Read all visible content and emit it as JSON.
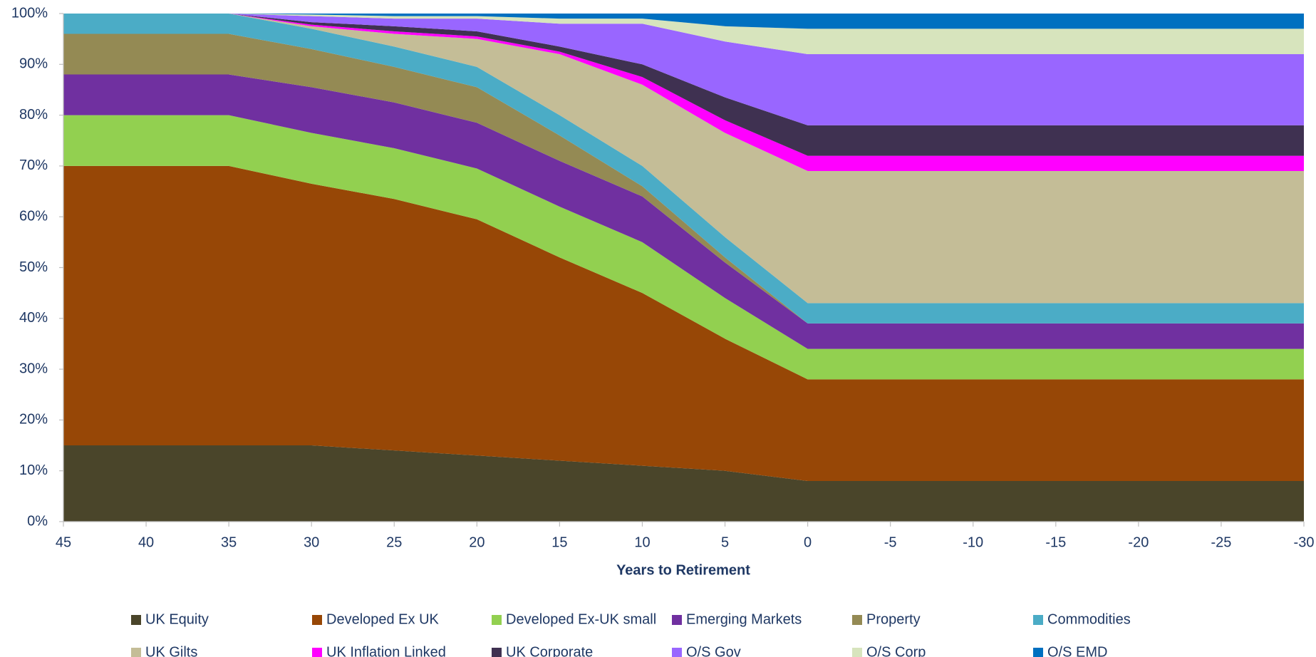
{
  "chart_data": {
    "type": "stacked_area",
    "x_label": "Years to Retirement",
    "x": [
      45,
      40,
      35,
      30,
      25,
      20,
      15,
      10,
      5,
      0,
      -5,
      -10,
      -15,
      -20,
      -25,
      -30
    ],
    "xlim": [
      45,
      -30
    ],
    "xticks": [
      45,
      40,
      35,
      30,
      25,
      20,
      15,
      10,
      5,
      0,
      -5,
      -10,
      -15,
      -20,
      -25,
      -30
    ],
    "ylim": [
      0,
      100
    ],
    "yticks": [
      {
        "value": 0,
        "label": "0%"
      },
      {
        "value": 10,
        "label": "10%"
      },
      {
        "value": 20,
        "label": "20%"
      },
      {
        "value": 30,
        "label": "30%"
      },
      {
        "value": 40,
        "label": "40%"
      },
      {
        "value": 50,
        "label": "50%"
      },
      {
        "value": 60,
        "label": "60%"
      },
      {
        "value": 70,
        "label": "70%"
      },
      {
        "value": 80,
        "label": "80%"
      },
      {
        "value": 90,
        "label": "90%"
      },
      {
        "value": 100,
        "label": "100%"
      }
    ],
    "legend": "bottom",
    "series": [
      {
        "name": "UK Equity",
        "color": "#4a452a",
        "values": [
          15,
          15,
          15,
          15,
          14,
          13,
          12,
          11,
          10,
          8,
          8,
          8,
          8,
          8,
          8,
          8
        ]
      },
      {
        "name": "Developed Ex UK",
        "color": "#974706",
        "values": [
          55,
          55,
          55,
          51.5,
          49.5,
          46.5,
          40,
          34,
          26,
          20,
          20,
          20,
          20,
          20,
          20,
          20
        ]
      },
      {
        "name": "Developed Ex-UK small",
        "color": "#92d050",
        "values": [
          10,
          10,
          10,
          10,
          10,
          10,
          10,
          10,
          8,
          6,
          6,
          6,
          6,
          6,
          6,
          6
        ]
      },
      {
        "name": "Emerging Markets",
        "color": "#7030a0",
        "values": [
          8,
          8,
          8,
          9,
          9,
          9,
          9,
          9,
          7,
          5,
          5,
          5,
          5,
          5,
          5,
          5
        ]
      },
      {
        "name": "Property",
        "color": "#948a54",
        "values": [
          8,
          8,
          8,
          7.5,
          7,
          7,
          5,
          2,
          1,
          0,
          0,
          0,
          0,
          0,
          0,
          0
        ]
      },
      {
        "name": "Commodities",
        "color": "#4bacc6",
        "values": [
          4,
          4,
          4,
          4,
          4,
          4,
          4,
          4,
          4,
          4,
          4,
          4,
          4,
          4,
          4,
          4
        ]
      },
      {
        "name": "UK Gilts",
        "color": "#c4bd97",
        "values": [
          0,
          0,
          0,
          0.5,
          2.5,
          5.5,
          12,
          16,
          20.5,
          26,
          26,
          26,
          26,
          26,
          26,
          26
        ]
      },
      {
        "name": "UK Inflation Linked",
        "color": "#ff00ff",
        "values": [
          0,
          0,
          0,
          0.3,
          0.5,
          0.5,
          0.5,
          1.5,
          2.5,
          3,
          3,
          3,
          3,
          3,
          3,
          3
        ]
      },
      {
        "name": "UK Corporate",
        "color": "#3f3151",
        "values": [
          0,
          0,
          0,
          0.5,
          1,
          1,
          1,
          2.5,
          4.5,
          6,
          6,
          6,
          6,
          6,
          6,
          6
        ]
      },
      {
        "name": "O/S Gov",
        "color": "#9966ff",
        "values": [
          0,
          0,
          0,
          1.2,
          1.5,
          2.5,
          4.5,
          8,
          11,
          14,
          14,
          14,
          14,
          14,
          14,
          14
        ]
      },
      {
        "name": "O/S Corp",
        "color": "#d7e4bd",
        "values": [
          0,
          0,
          0,
          0.3,
          0.5,
          0.5,
          1,
          1,
          3,
          5,
          5,
          5,
          5,
          5,
          5,
          5
        ]
      },
      {
        "name": "O/S EMD",
        "color": "#0070c0",
        "values": [
          0,
          0,
          0,
          0.2,
          0.5,
          0.5,
          1,
          1,
          2.5,
          3,
          3,
          3,
          3,
          3,
          3,
          3
        ]
      }
    ]
  }
}
